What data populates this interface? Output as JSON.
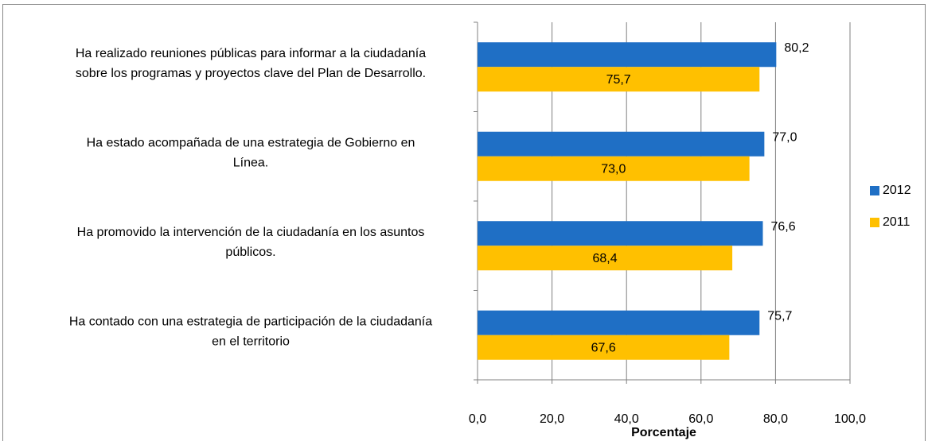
{
  "chart_data": {
    "type": "bar",
    "orientation": "horizontal",
    "categories": [
      "Ha realizado reuniones públicas  para informar a la ciudadanía\nsobre los programas y proyectos  clave del Plan de Desarrollo.",
      "Ha estado acompañada de una estrategia de Gobierno en\nLínea.",
      "Ha promovido la intervención de la ciudadanía en los asuntos\npúblicos.",
      "Ha contado con una estrategia de participación  de la ciudadanía\nen el territorio"
    ],
    "series": [
      {
        "name": "2012",
        "color": "#1f6fc5",
        "values": [
          80.2,
          77.0,
          76.6,
          75.7
        ],
        "value_labels": [
          "80,2",
          "77,0",
          "76,6",
          "75,7"
        ]
      },
      {
        "name": "2011",
        "color": "#ffc000",
        "values": [
          75.7,
          73.0,
          68.4,
          67.6
        ],
        "value_labels": [
          "75,7",
          "73,0",
          "68,4",
          "67,6"
        ]
      }
    ],
    "xlabel": "Porcentaje",
    "xlim": [
      0,
      100
    ],
    "xticks": [
      {
        "value": 0,
        "label": "0,0"
      },
      {
        "value": 20,
        "label": "20,0"
      },
      {
        "value": 40,
        "label": "40,0"
      },
      {
        "value": 60,
        "label": "60,0"
      },
      {
        "value": 80,
        "label": "80,0"
      },
      {
        "value": 100,
        "label": "100,0"
      }
    ],
    "grid": true,
    "legend": "right"
  }
}
